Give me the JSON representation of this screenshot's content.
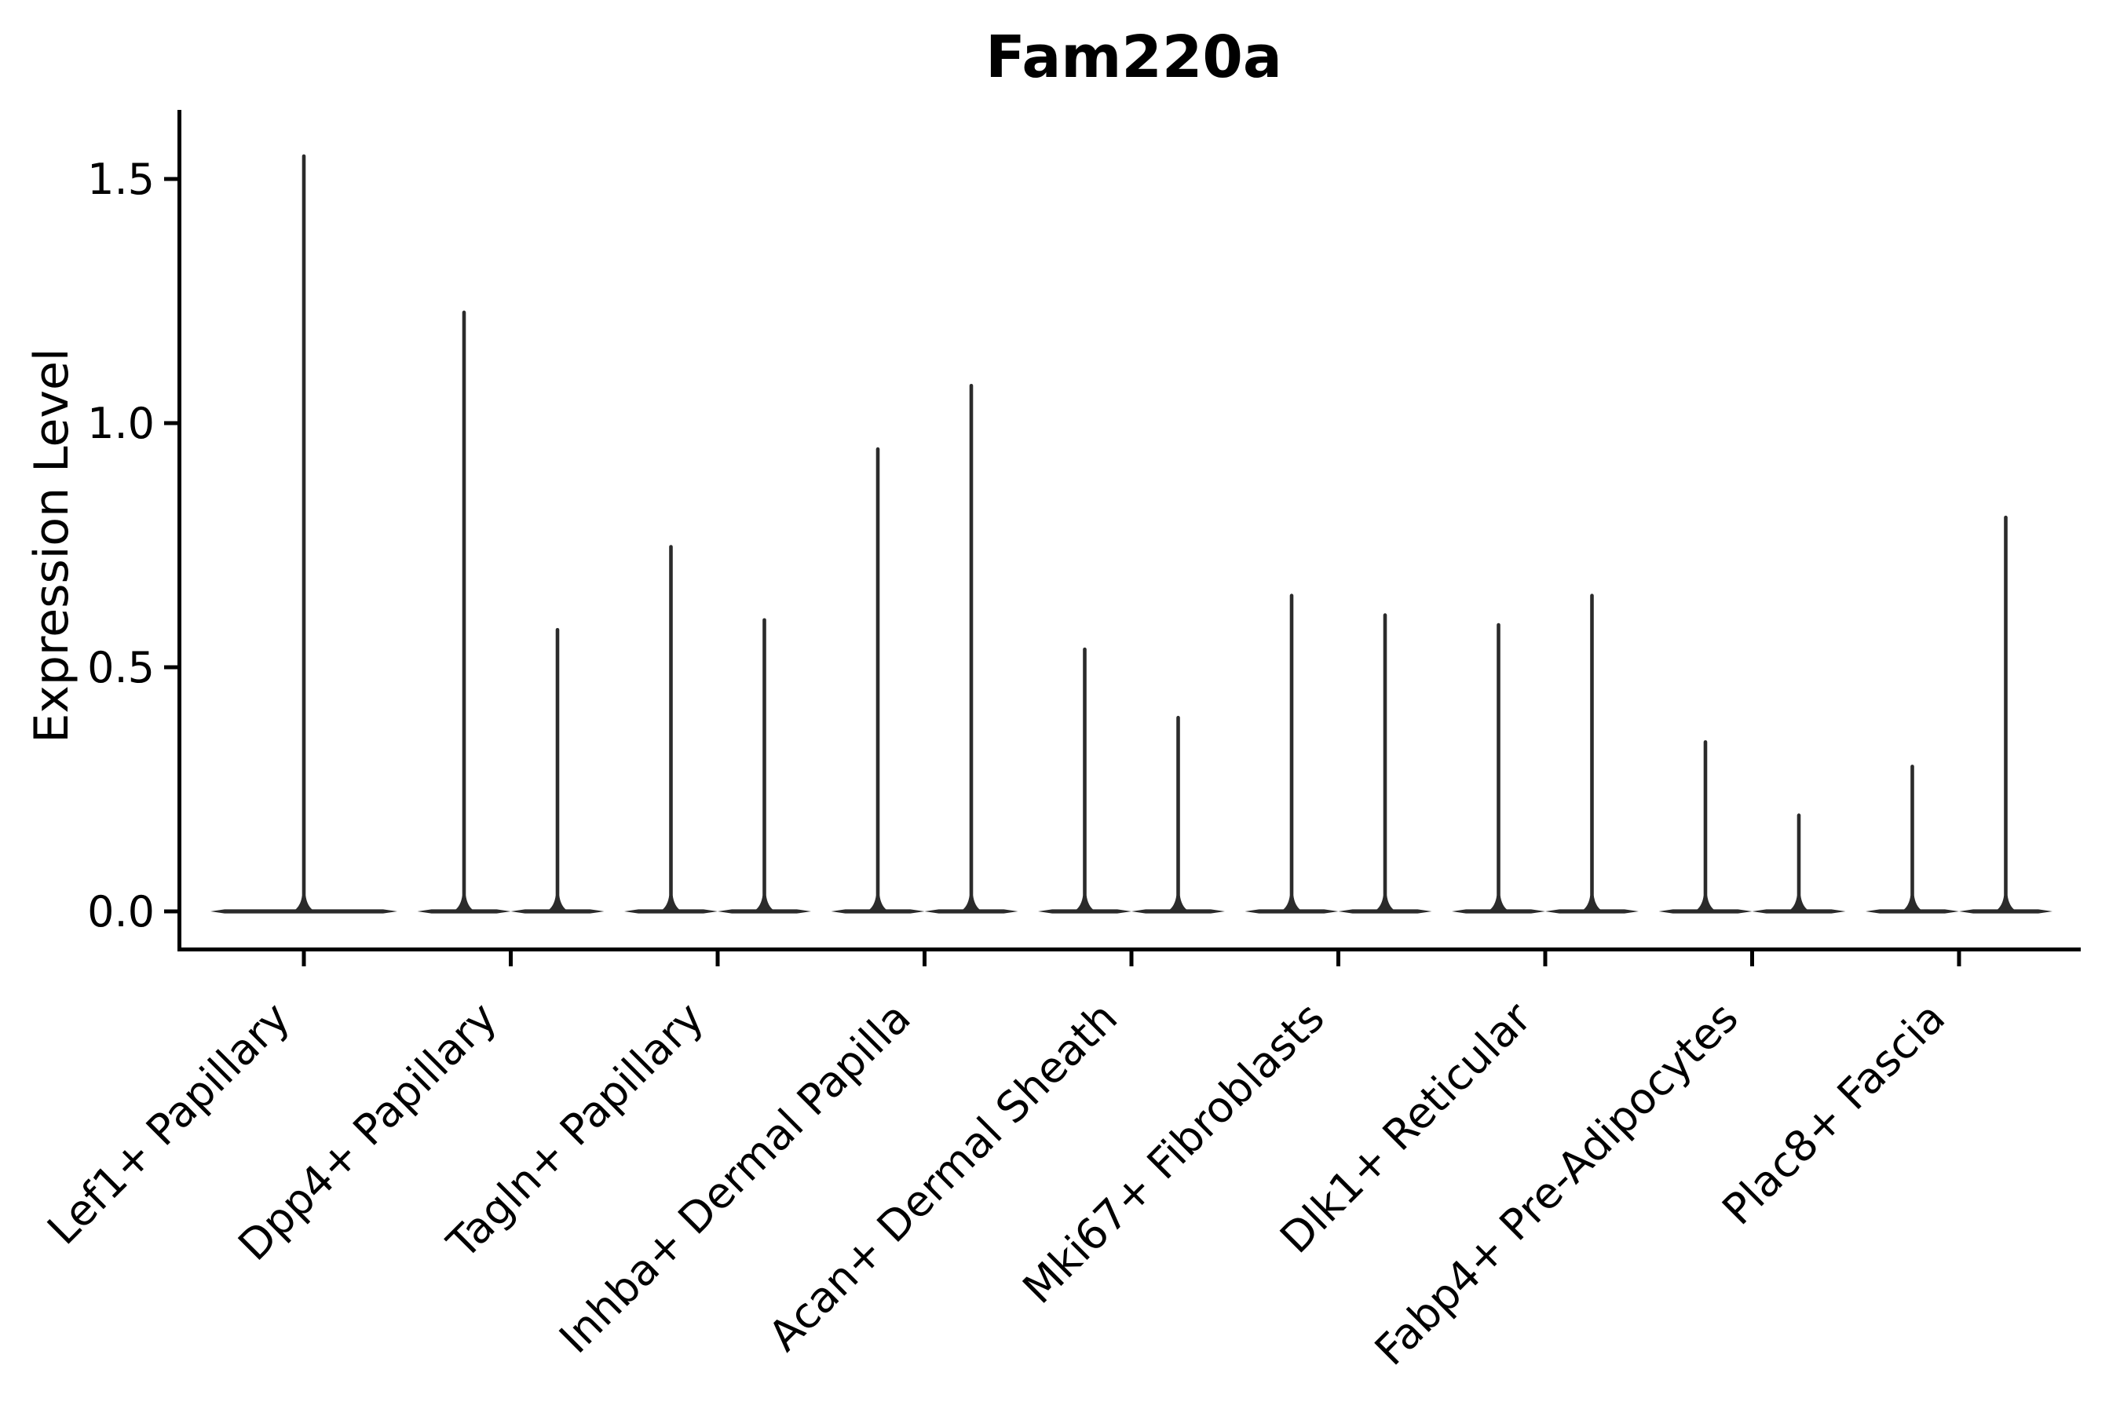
{
  "title": "Fam220a",
  "y_axis": {
    "label": "Expression Level",
    "tick_labels": [
      "0.0",
      "0.5",
      "1.0",
      "1.5"
    ],
    "tick_values": [
      0.0,
      0.5,
      1.0,
      1.5
    ]
  },
  "chart_data": {
    "type": "violin",
    "title": "Fam220a",
    "xlabel": "",
    "ylabel": "Expression Level",
    "ylim": [
      -0.08,
      1.64
    ],
    "grid": false,
    "legend": "none",
    "note": "Single-cell expression violin plot: density is concentrated at 0, so each violin renders as a flat tapered bar at 0 with a thin spike rising to its maximum expression value. First category has one full-width violin; all others have two half-width violins side by side.",
    "categories": [
      "Lef1+ Papillary",
      "Dpp4+ Papillary",
      "Tagln+ Papillary",
      "Inhba+ Dermal Papilla",
      "Acan+ Dermal Sheath",
      "Mki67+ Fibroblasts",
      "Dlk1+ Reticular",
      "Fabp4+ Pre-Adipocytes",
      "Plac8+ Fascia"
    ],
    "series": [
      {
        "category": "Lef1+ Papillary",
        "violin_maxima": [
          1.55
        ]
      },
      {
        "category": "Dpp4+ Papillary",
        "violin_maxima": [
          1.23,
          0.58
        ]
      },
      {
        "category": "Tagln+ Papillary",
        "violin_maxima": [
          0.75,
          0.6
        ]
      },
      {
        "category": "Inhba+ Dermal Papilla",
        "violin_maxima": [
          0.95,
          1.08
        ]
      },
      {
        "category": "Acan+ Dermal Sheath",
        "violin_maxima": [
          0.54,
          0.4
        ]
      },
      {
        "category": "Mki67+ Fibroblasts",
        "violin_maxima": [
          0.65,
          0.61
        ]
      },
      {
        "category": "Dlk1+ Reticular",
        "violin_maxima": [
          0.59,
          0.65
        ]
      },
      {
        "category": "Fabp4+ Pre-Adipocytes",
        "violin_maxima": [
          0.35,
          0.2
        ]
      },
      {
        "category": "Plac8+ Fascia",
        "violin_maxima": [
          0.3,
          0.81
        ]
      }
    ]
  },
  "colors": {
    "violin": "#2b2b2b",
    "axis": "#000000",
    "text": "#000000",
    "background": "#ffffff"
  }
}
